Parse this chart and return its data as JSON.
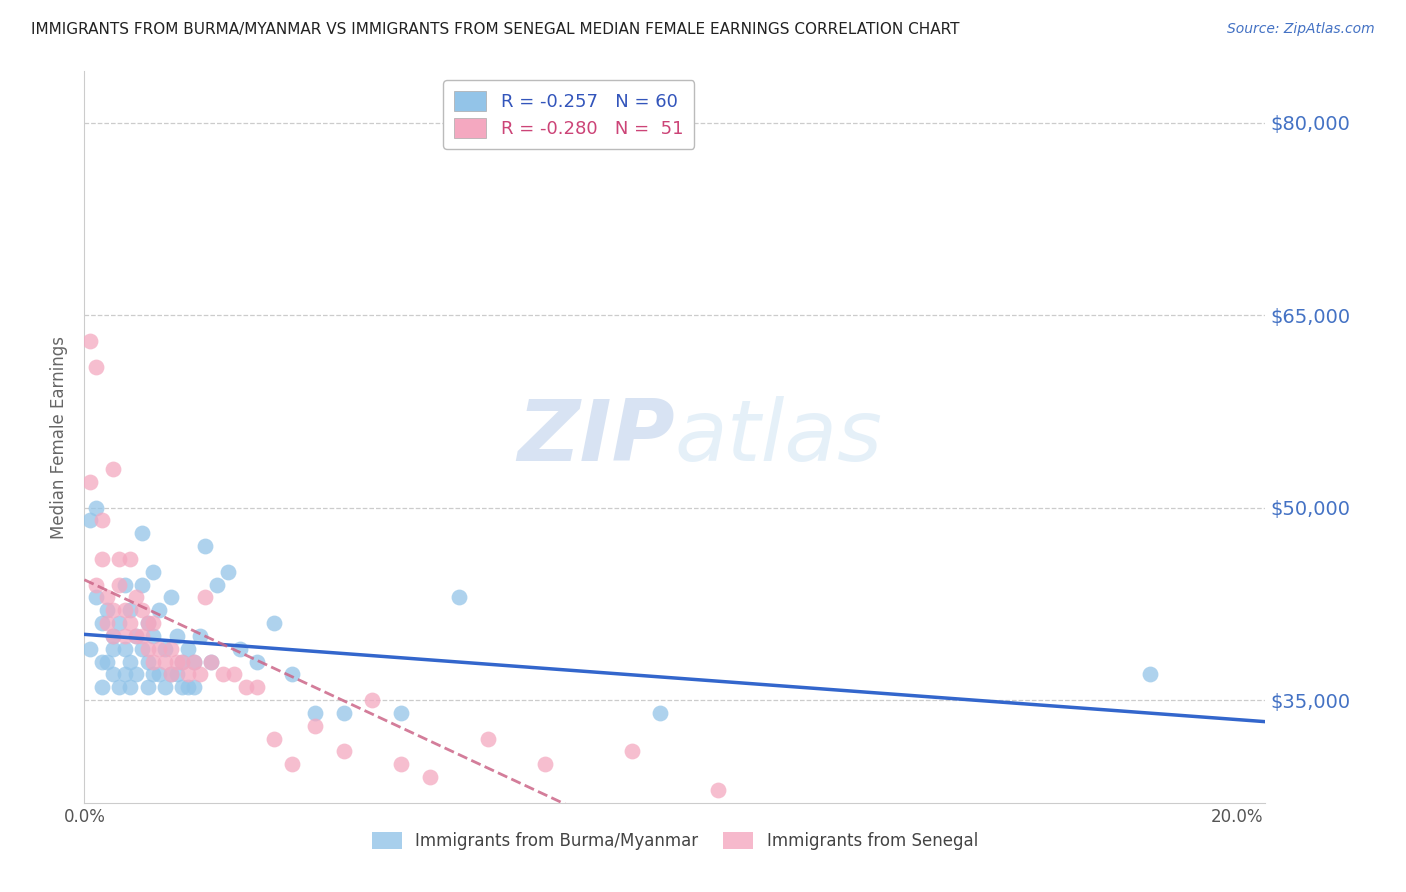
{
  "title": "IMMIGRANTS FROM BURMA/MYANMAR VS IMMIGRANTS FROM SENEGAL MEDIAN FEMALE EARNINGS CORRELATION CHART",
  "source": "Source: ZipAtlas.com",
  "ylabel": "Median Female Earnings",
  "xlim": [
    0.0,
    0.205
  ],
  "ylim": [
    27000,
    84000
  ],
  "yticks": [
    35000,
    50000,
    65000,
    80000
  ],
  "ytick_labels": [
    "$35,000",
    "$50,000",
    "$65,000",
    "$80,000"
  ],
  "xticks": [
    0.0,
    0.05,
    0.1,
    0.15,
    0.2
  ],
  "xtick_labels": [
    "0.0%",
    "",
    "",
    "",
    "20.0%"
  ],
  "legend_label_blue": "R = -0.257   N = 60",
  "legend_label_pink": "R = -0.280   N =  51",
  "legend_footer": [
    "Immigrants from Burma/Myanmar",
    "Immigrants from Senegal"
  ],
  "watermark_zip": "ZIP",
  "watermark_atlas": "atlas",
  "blue_color": "#93c4e8",
  "pink_color": "#f4a8c0",
  "blue_line_color": "#3366cc",
  "pink_line_color": "#cc6688",
  "grid_color": "#cccccc",
  "title_color": "#222222",
  "right_label_color": "#4472c4",
  "source_color": "#4472c4",
  "background_color": "#ffffff",
  "blue_x": [
    0.001,
    0.001,
    0.002,
    0.002,
    0.003,
    0.003,
    0.003,
    0.004,
    0.004,
    0.005,
    0.005,
    0.005,
    0.006,
    0.006,
    0.007,
    0.007,
    0.007,
    0.008,
    0.008,
    0.008,
    0.009,
    0.009,
    0.01,
    0.01,
    0.01,
    0.011,
    0.011,
    0.011,
    0.012,
    0.012,
    0.012,
    0.013,
    0.013,
    0.014,
    0.014,
    0.015,
    0.015,
    0.016,
    0.016,
    0.017,
    0.017,
    0.018,
    0.018,
    0.019,
    0.019,
    0.02,
    0.021,
    0.022,
    0.023,
    0.025,
    0.027,
    0.03,
    0.033,
    0.036,
    0.04,
    0.045,
    0.055,
    0.065,
    0.1,
    0.185
  ],
  "blue_y": [
    39000,
    49000,
    43000,
    50000,
    38000,
    41000,
    36000,
    42000,
    38000,
    40000,
    39000,
    37000,
    41000,
    36000,
    44000,
    39000,
    37000,
    42000,
    38000,
    36000,
    40000,
    37000,
    48000,
    44000,
    39000,
    41000,
    38000,
    36000,
    45000,
    40000,
    37000,
    42000,
    37000,
    39000,
    36000,
    43000,
    37000,
    40000,
    37000,
    38000,
    36000,
    39000,
    36000,
    38000,
    36000,
    40000,
    47000,
    38000,
    44000,
    45000,
    39000,
    38000,
    41000,
    37000,
    34000,
    34000,
    34000,
    43000,
    34000,
    37000
  ],
  "pink_x": [
    0.001,
    0.001,
    0.002,
    0.002,
    0.003,
    0.003,
    0.004,
    0.004,
    0.005,
    0.005,
    0.005,
    0.006,
    0.006,
    0.007,
    0.007,
    0.008,
    0.008,
    0.009,
    0.009,
    0.01,
    0.01,
    0.011,
    0.011,
    0.012,
    0.012,
    0.013,
    0.014,
    0.015,
    0.015,
    0.016,
    0.017,
    0.018,
    0.019,
    0.02,
    0.021,
    0.022,
    0.024,
    0.026,
    0.028,
    0.03,
    0.033,
    0.036,
    0.04,
    0.045,
    0.05,
    0.055,
    0.06,
    0.07,
    0.08,
    0.095,
    0.11
  ],
  "pink_y": [
    52000,
    63000,
    44000,
    61000,
    46000,
    49000,
    43000,
    41000,
    53000,
    42000,
    40000,
    46000,
    44000,
    42000,
    40000,
    46000,
    41000,
    43000,
    40000,
    42000,
    40000,
    41000,
    39000,
    41000,
    38000,
    39000,
    38000,
    39000,
    37000,
    38000,
    38000,
    37000,
    38000,
    37000,
    43000,
    38000,
    37000,
    37000,
    36000,
    36000,
    32000,
    30000,
    33000,
    31000,
    35000,
    30000,
    29000,
    32000,
    30000,
    31000,
    28000
  ]
}
